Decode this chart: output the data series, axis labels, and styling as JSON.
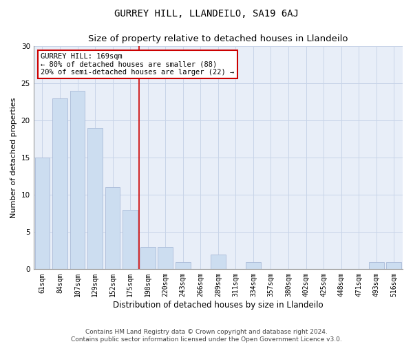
{
  "title": "GURREY HILL, LLANDEILO, SA19 6AJ",
  "subtitle": "Size of property relative to detached houses in Llandeilo",
  "xlabel": "Distribution of detached houses by size in Llandeilo",
  "ylabel": "Number of detached properties",
  "categories": [
    "61sqm",
    "84sqm",
    "107sqm",
    "129sqm",
    "152sqm",
    "175sqm",
    "198sqm",
    "220sqm",
    "243sqm",
    "266sqm",
    "289sqm",
    "311sqm",
    "334sqm",
    "357sqm",
    "380sqm",
    "402sqm",
    "425sqm",
    "448sqm",
    "471sqm",
    "493sqm",
    "516sqm"
  ],
  "values": [
    15,
    23,
    24,
    19,
    11,
    8,
    3,
    3,
    1,
    0,
    2,
    0,
    1,
    0,
    0,
    0,
    0,
    0,
    0,
    1,
    1
  ],
  "bar_color": "#ccddf0",
  "bar_edge_color": "#aabbd8",
  "vline_color": "#cc0000",
  "vline_pos": 5.5,
  "annotation_text_line1": "GURREY HILL: 169sqm",
  "annotation_text_line2": "← 80% of detached houses are smaller (88)",
  "annotation_text_line3": "20% of semi-detached houses are larger (22) →",
  "ylim": [
    0,
    30
  ],
  "yticks": [
    0,
    5,
    10,
    15,
    20,
    25,
    30
  ],
  "ax_facecolor": "#e8eef8",
  "background_color": "#ffffff",
  "grid_color": "#c8d4e8",
  "title_fontsize": 10,
  "subtitle_fontsize": 9.5,
  "xlabel_fontsize": 8.5,
  "ylabel_fontsize": 8,
  "tick_fontsize": 7,
  "annotation_fontsize": 7.5,
  "footer_fontsize": 6.5,
  "footer_line1": "Contains HM Land Registry data © Crown copyright and database right 2024.",
  "footer_line2": "Contains public sector information licensed under the Open Government Licence v3.0."
}
